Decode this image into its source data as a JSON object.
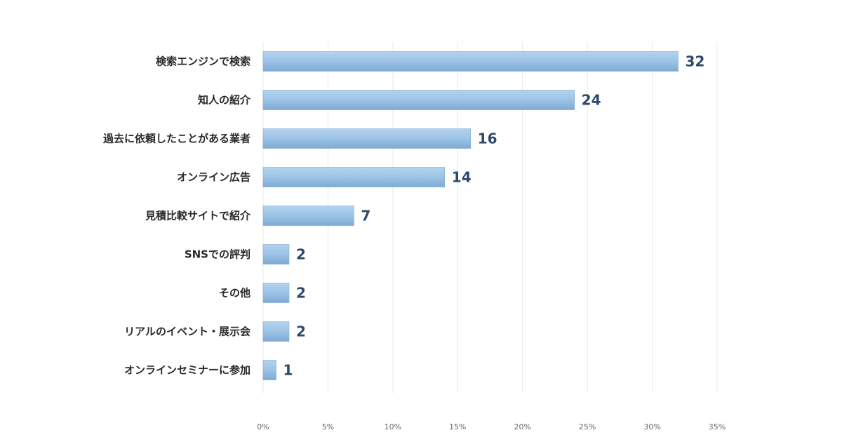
{
  "chart_data": {
    "type": "bar",
    "orientation": "horizontal",
    "title": "",
    "xlabel": "",
    "ylabel": "",
    "categories": [
      "検索エンジンで検索",
      "知人の紹介",
      "過去に依頼したことがある業者",
      "オンライン広告",
      "見積比較サイトで紹介",
      "SNSでの評判",
      "その他",
      "リアルのイベント・展示会",
      "オンラインセミナーに参加"
    ],
    "values": [
      32,
      24,
      16,
      14,
      7,
      2,
      2,
      2,
      1
    ],
    "xlim": [
      0,
      35
    ],
    "xticks": [
      0,
      5,
      10,
      15,
      20,
      25,
      30,
      35
    ],
    "xtick_labels": [
      "0%",
      "5%",
      "10%",
      "15%",
      "20%",
      "25%",
      "30%",
      "35%"
    ],
    "grid": true,
    "bar_color": "#9cc3e6",
    "bar_edge_color": "#7fa9d1",
    "value_label_color": "#2d4a6b"
  }
}
